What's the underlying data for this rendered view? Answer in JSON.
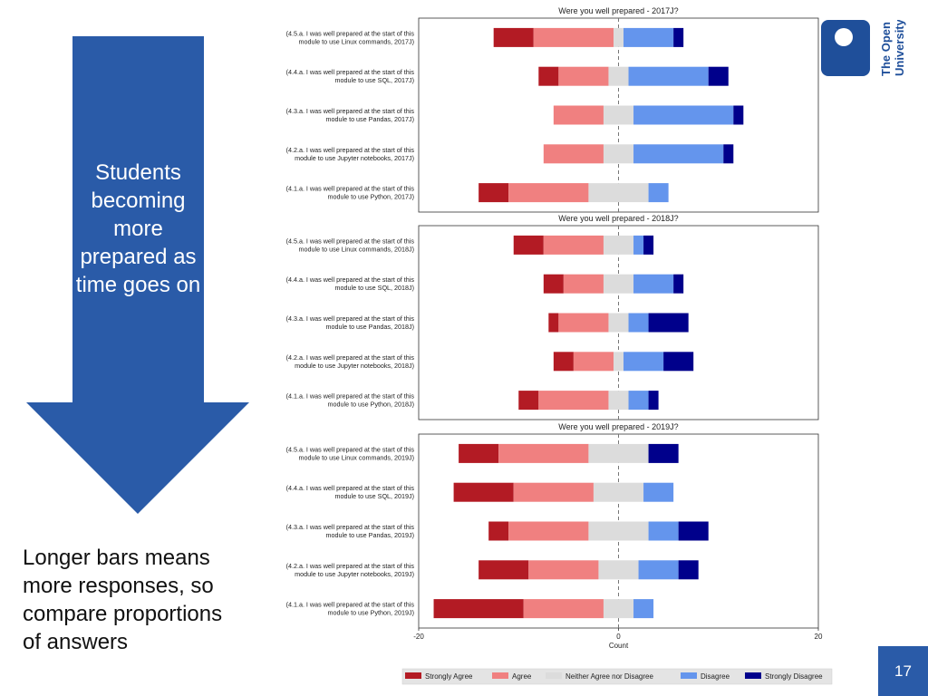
{
  "slide": {
    "arrow_text": "Students becoming more prepared as time goes on",
    "side_note": "Longer bars means more responses, so compare proportions of answers",
    "page_number": "17",
    "logo_lines": [
      "The Open",
      "University"
    ]
  },
  "colors": {
    "arrow": "#2a5ba8",
    "logo": "#1f4f9a",
    "strongly_agree": "#b31b24",
    "agree": "#f08080",
    "neutral": "#dcdcdc",
    "disagree": "#6495ed",
    "strongly_disagree": "#00008b"
  },
  "chart_data": {
    "type": "bar",
    "orientation": "horizontal",
    "stacked": "diverging",
    "xlabel": "Count",
    "xlim": [
      -20,
      20
    ],
    "xticks": [
      -20,
      0,
      20
    ],
    "legend": [
      "Strongly Agree",
      "Agree",
      "Neither Agree nor Disagree",
      "Disagree",
      "Strongly Disagree"
    ],
    "legend_position": "bottom",
    "panels": [
      {
        "title": "Were you well prepared - 2017J?",
        "categories": [
          "(4.5.a. I was well prepared at the start of this|module to use Linux commands, 2017J)",
          "(4.4.a. I was well prepared at the start of this|module to use SQL, 2017J)",
          "(4.3.a. I was well prepared at the start of this|module to use Pandas, 2017J)",
          "(4.2.a. I was well prepared at the start of this|module to use Jupyter notebooks, 2017J)",
          "(4.1.a. I was well prepared at the start of this|module to use Python, 2017J)"
        ],
        "series": [
          {
            "name": "Strongly Agree",
            "values": [
              4,
              2,
              0,
              0,
              3
            ]
          },
          {
            "name": "Agree",
            "values": [
              8,
              5,
              5,
              6,
              8
            ]
          },
          {
            "name": "Neither Agree nor Disagree",
            "values": [
              1,
              2,
              3,
              3,
              6
            ]
          },
          {
            "name": "Disagree",
            "values": [
              5,
              8,
              10,
              9,
              2
            ]
          },
          {
            "name": "Strongly Disagree",
            "values": [
              1,
              2,
              1,
              1,
              0
            ]
          }
        ]
      },
      {
        "title": "Were you well prepared - 2018J?",
        "categories": [
          "(4.5.a. I was well prepared at the start of this|module to use Linux commands, 2018J)",
          "(4.4.a. I was well prepared at the start of this|module to use SQL, 2018J)",
          "(4.3.a. I was well prepared at the start of this|module to use Pandas, 2018J)",
          "(4.2.a. I was well prepared at the start of this|module to use Jupyter notebooks, 2018J)",
          "(4.1.a. I was well prepared at the start of this|module to use Python, 2018J)"
        ],
        "series": [
          {
            "name": "Strongly Agree",
            "values": [
              3,
              2,
              1,
              2,
              2
            ]
          },
          {
            "name": "Agree",
            "values": [
              6,
              4,
              5,
              4,
              7
            ]
          },
          {
            "name": "Neither Agree nor Disagree",
            "values": [
              3,
              3,
              2,
              1,
              2
            ]
          },
          {
            "name": "Disagree",
            "values": [
              1,
              4,
              2,
              4,
              2
            ]
          },
          {
            "name": "Strongly Disagree",
            "values": [
              1,
              1,
              4,
              3,
              1
            ]
          }
        ]
      },
      {
        "title": "Were you well prepared - 2019J?",
        "categories": [
          "(4.5.a. I was well prepared at the start of this|module to use Linux commands, 2019J)",
          "(4.4.a. I was well prepared at the start of this|module to use SQL, 2019J)",
          "(4.3.a. I was well prepared at the start of this|module to use Pandas, 2019J)",
          "(4.2.a. I was well prepared at the start of this|module to use Jupyter notebooks, 2019J)",
          "(4.1.a. I was well prepared at the start of this|module to use Python, 2019J)"
        ],
        "series": [
          {
            "name": "Strongly Agree",
            "values": [
              4,
              6,
              2,
              5,
              9
            ]
          },
          {
            "name": "Agree",
            "values": [
              9,
              8,
              8,
              7,
              8
            ]
          },
          {
            "name": "Neither Agree nor Disagree",
            "values": [
              6,
              5,
              6,
              4,
              3
            ]
          },
          {
            "name": "Disagree",
            "values": [
              0,
              3,
              3,
              4,
              2
            ]
          },
          {
            "name": "Strongly Disagree",
            "values": [
              3,
              0,
              3,
              2,
              0
            ]
          }
        ]
      }
    ]
  }
}
